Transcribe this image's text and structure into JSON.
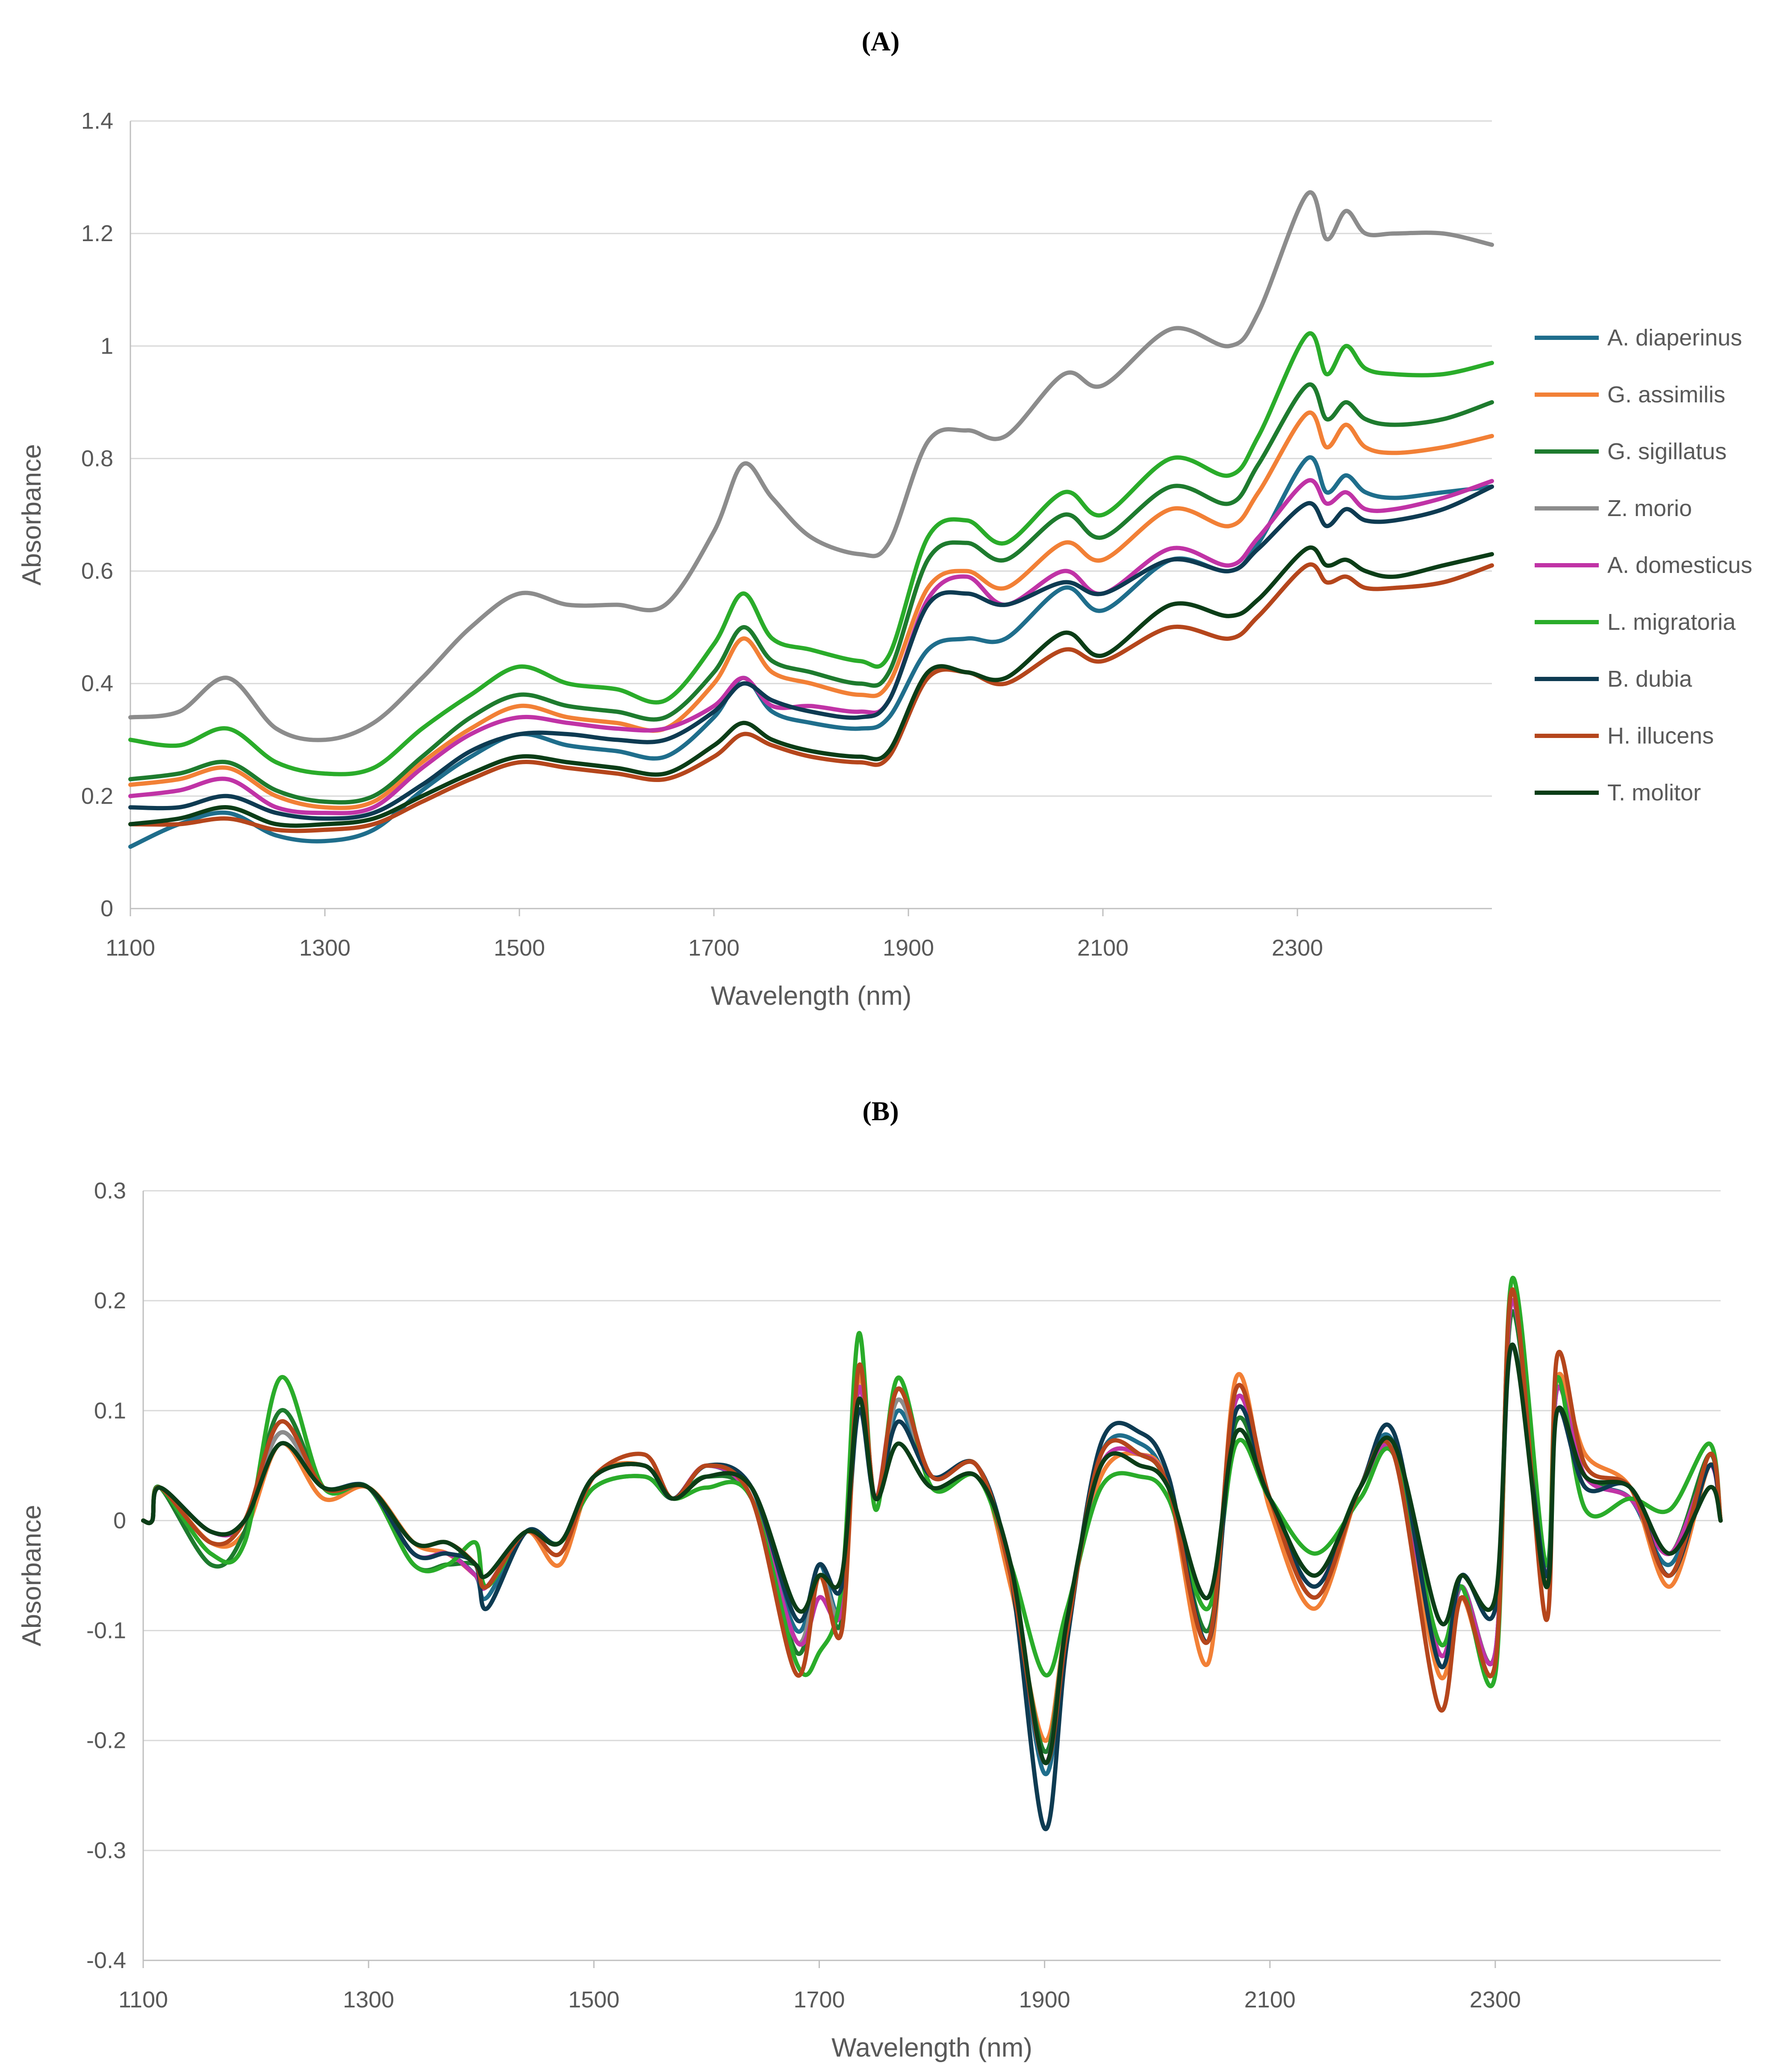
{
  "chart_data": [
    {
      "panel": "A",
      "panel_label": "(A)",
      "type": "line",
      "xlabel": "Wavelength (nm)",
      "ylabel": "Absorbance",
      "xlim": [
        1100,
        2500
      ],
      "ylim": [
        0,
        1.4
      ],
      "xticks": [
        1100,
        1300,
        1500,
        1700,
        1900,
        2100,
        2300
      ],
      "yticks": [
        0,
        0.2,
        0.4,
        0.6,
        0.8,
        1,
        1.2,
        1.4
      ],
      "ytick_labels": [
        "0",
        "0.2",
        "0.4",
        "0.6",
        "0.8",
        "1",
        "1.2",
        "1.4"
      ],
      "grid": "horizontal",
      "legend": "right",
      "x": [
        1100,
        1150,
        1200,
        1250,
        1300,
        1350,
        1400,
        1450,
        1500,
        1550,
        1600,
        1650,
        1700,
        1730,
        1760,
        1800,
        1850,
        1880,
        1920,
        1960,
        2000,
        2060,
        2100,
        2170,
        2230,
        2260,
        2310,
        2330,
        2350,
        2370,
        2400,
        2450,
        2500
      ],
      "series": [
        {
          "name": "A. diaperinus",
          "color": "#1f6e8c",
          "values": [
            0.11,
            0.15,
            0.17,
            0.13,
            0.12,
            0.14,
            0.21,
            0.27,
            0.31,
            0.29,
            0.28,
            0.27,
            0.34,
            0.41,
            0.35,
            0.33,
            0.32,
            0.34,
            0.46,
            0.48,
            0.48,
            0.57,
            0.53,
            0.62,
            0.6,
            0.65,
            0.8,
            0.74,
            0.77,
            0.74,
            0.73,
            0.74,
            0.75
          ]
        },
        {
          "name": "G. assimilis",
          "color": "#f28036",
          "values": [
            0.22,
            0.23,
            0.25,
            0.2,
            0.18,
            0.19,
            0.26,
            0.32,
            0.36,
            0.34,
            0.33,
            0.32,
            0.4,
            0.48,
            0.42,
            0.4,
            0.38,
            0.4,
            0.57,
            0.6,
            0.57,
            0.65,
            0.62,
            0.71,
            0.68,
            0.74,
            0.88,
            0.82,
            0.86,
            0.82,
            0.81,
            0.82,
            0.84
          ]
        },
        {
          "name": "G. sigillatus",
          "color": "#1e7b2e",
          "values": [
            0.23,
            0.24,
            0.26,
            0.21,
            0.19,
            0.2,
            0.27,
            0.34,
            0.38,
            0.36,
            0.35,
            0.34,
            0.42,
            0.5,
            0.44,
            0.42,
            0.4,
            0.42,
            0.62,
            0.65,
            0.62,
            0.7,
            0.66,
            0.75,
            0.72,
            0.79,
            0.93,
            0.87,
            0.9,
            0.87,
            0.86,
            0.87,
            0.9
          ]
        },
        {
          "name": "Z. morio",
          "color": "#8c8c8c",
          "values": [
            0.34,
            0.35,
            0.41,
            0.32,
            0.3,
            0.33,
            0.41,
            0.5,
            0.56,
            0.54,
            0.54,
            0.54,
            0.67,
            0.79,
            0.73,
            0.66,
            0.63,
            0.65,
            0.83,
            0.85,
            0.84,
            0.95,
            0.93,
            1.03,
            1.0,
            1.06,
            1.27,
            1.19,
            1.24,
            1.2,
            1.2,
            1.2,
            1.18
          ]
        },
        {
          "name": "A. domesticus",
          "color": "#c033a6",
          "values": [
            0.2,
            0.21,
            0.23,
            0.18,
            0.17,
            0.18,
            0.25,
            0.31,
            0.34,
            0.33,
            0.32,
            0.32,
            0.36,
            0.41,
            0.36,
            0.36,
            0.35,
            0.37,
            0.55,
            0.59,
            0.54,
            0.6,
            0.56,
            0.64,
            0.61,
            0.66,
            0.76,
            0.72,
            0.74,
            0.71,
            0.71,
            0.73,
            0.76
          ]
        },
        {
          "name": "L. migratoria",
          "color": "#2aac2a",
          "values": [
            0.3,
            0.29,
            0.32,
            0.26,
            0.24,
            0.25,
            0.32,
            0.38,
            0.43,
            0.4,
            0.39,
            0.37,
            0.47,
            0.56,
            0.48,
            0.46,
            0.44,
            0.45,
            0.66,
            0.69,
            0.65,
            0.74,
            0.7,
            0.8,
            0.77,
            0.84,
            1.02,
            0.95,
            1.0,
            0.96,
            0.95,
            0.95,
            0.97
          ]
        },
        {
          "name": "B. dubia",
          "color": "#0e3b52",
          "values": [
            0.18,
            0.18,
            0.2,
            0.17,
            0.16,
            0.17,
            0.22,
            0.28,
            0.31,
            0.31,
            0.3,
            0.3,
            0.35,
            0.4,
            0.37,
            0.35,
            0.34,
            0.37,
            0.54,
            0.56,
            0.54,
            0.58,
            0.56,
            0.62,
            0.6,
            0.64,
            0.72,
            0.68,
            0.71,
            0.69,
            0.69,
            0.71,
            0.75
          ]
        },
        {
          "name": "H. illucens",
          "color": "#b5461c",
          "values": [
            0.15,
            0.15,
            0.16,
            0.14,
            0.14,
            0.15,
            0.19,
            0.23,
            0.26,
            0.25,
            0.24,
            0.23,
            0.27,
            0.31,
            0.29,
            0.27,
            0.26,
            0.27,
            0.41,
            0.42,
            0.4,
            0.46,
            0.44,
            0.5,
            0.48,
            0.52,
            0.61,
            0.58,
            0.59,
            0.57,
            0.57,
            0.58,
            0.61
          ]
        },
        {
          "name": "T. molitor",
          "color": "#0b3d17",
          "values": [
            0.15,
            0.16,
            0.18,
            0.15,
            0.15,
            0.16,
            0.2,
            0.24,
            0.27,
            0.26,
            0.25,
            0.24,
            0.29,
            0.33,
            0.3,
            0.28,
            0.27,
            0.28,
            0.42,
            0.42,
            0.41,
            0.49,
            0.45,
            0.54,
            0.52,
            0.55,
            0.64,
            0.61,
            0.62,
            0.6,
            0.59,
            0.61,
            0.63
          ]
        }
      ]
    },
    {
      "panel": "B",
      "panel_label": "(B)",
      "type": "line",
      "xlabel": "Wavelength (nm)",
      "ylabel": "Absorbance",
      "xlim": [
        1100,
        2500
      ],
      "ylim": [
        -0.4,
        0.3
      ],
      "xticks": [
        1100,
        1300,
        1500,
        1700,
        1900,
        2100,
        2300
      ],
      "yticks": [
        -0.4,
        -0.3,
        -0.2,
        -0.1,
        0,
        0.1,
        0.2,
        0.3
      ],
      "ytick_labels": [
        "-0.4",
        "-0.3",
        "-0.2",
        "-0.1",
        "0",
        "0.1",
        "0.2",
        "0.3"
      ],
      "grid": "horizontal",
      "x": [
        1100,
        1108,
        1115,
        1160,
        1190,
        1222,
        1260,
        1300,
        1340,
        1370,
        1395,
        1405,
        1440,
        1470,
        1500,
        1545,
        1570,
        1600,
        1640,
        1680,
        1700,
        1720,
        1735,
        1750,
        1770,
        1800,
        1840,
        1870,
        1900,
        1920,
        1950,
        1985,
        2010,
        2045,
        2070,
        2100,
        2140,
        2180,
        2210,
        2250,
        2270,
        2300,
        2315,
        2345,
        2355,
        2380,
        2420,
        2455,
        2490,
        2500
      ],
      "series": [
        {
          "name": "A. diaperinus",
          "color": "#1f6e8c",
          "values": [
            0,
            0,
            0.03,
            -0.01,
            0,
            0.08,
            0.03,
            0.03,
            -0.03,
            -0.03,
            -0.05,
            -0.07,
            -0.01,
            -0.02,
            0.04,
            0.05,
            0.02,
            0.05,
            0.02,
            -0.1,
            -0.04,
            -0.08,
            0.12,
            0.02,
            0.1,
            0.04,
            0.05,
            -0.05,
            -0.23,
            -0.1,
            0.06,
            0.07,
            0.03,
            -0.11,
            0.11,
            0.02,
            -0.07,
            0.03,
            0.07,
            -0.13,
            -0.06,
            -0.12,
            0.2,
            -0.05,
            0.12,
            0.04,
            0.02,
            -0.04,
            0.05,
            0
          ]
        },
        {
          "name": "G. assimilis",
          "color": "#f28036",
          "values": [
            0,
            0,
            0.03,
            -0.02,
            -0.01,
            0.07,
            0.02,
            0.03,
            -0.02,
            -0.03,
            -0.05,
            -0.06,
            -0.01,
            -0.04,
            0.04,
            0.05,
            0.02,
            0.05,
            0.02,
            -0.12,
            -0.05,
            -0.1,
            0.13,
            0.02,
            0.12,
            0.04,
            0.05,
            -0.06,
            -0.2,
            -0.09,
            0.04,
            0.06,
            0.03,
            -0.13,
            0.13,
            0.01,
            -0.08,
            0.03,
            0.06,
            -0.14,
            -0.07,
            -0.13,
            0.21,
            -0.06,
            0.13,
            0.06,
            0.03,
            -0.06,
            0.05,
            0
          ]
        },
        {
          "name": "G. sigillatus",
          "color": "#1e7b2e",
          "values": [
            0,
            0,
            0.03,
            -0.04,
            -0.01,
            0.1,
            0.03,
            0.03,
            -0.04,
            -0.04,
            -0.04,
            -0.06,
            -0.01,
            -0.02,
            0.03,
            0.04,
            0.02,
            0.04,
            0.02,
            -0.12,
            -0.05,
            -0.09,
            0.14,
            0.02,
            0.12,
            0.04,
            0.05,
            -0.05,
            -0.21,
            -0.09,
            0.05,
            0.06,
            0.03,
            -0.1,
            0.09,
            0.02,
            -0.05,
            0.03,
            0.06,
            -0.12,
            -0.06,
            -0.12,
            0.19,
            -0.05,
            0.12,
            0.04,
            0.03,
            -0.03,
            0.06,
            0
          ]
        },
        {
          "name": "Z. morio",
          "color": "#8c8c8c",
          "values": [
            0,
            0,
            0.03,
            -0.01,
            0,
            0.08,
            0.03,
            0.03,
            -0.03,
            -0.03,
            -0.05,
            -0.06,
            -0.01,
            -0.02,
            0.04,
            0.05,
            0.02,
            0.05,
            0.02,
            -0.11,
            -0.05,
            -0.08,
            0.12,
            0.02,
            0.11,
            0.04,
            0.05,
            -0.05,
            -0.22,
            -0.09,
            0.05,
            0.06,
            0.03,
            -0.11,
            0.11,
            0.02,
            -0.07,
            0.03,
            0.06,
            -0.12,
            -0.06,
            -0.12,
            0.2,
            -0.05,
            0.12,
            0.04,
            0.02,
            -0.03,
            0.05,
            0
          ]
        },
        {
          "name": "A. domesticus",
          "color": "#c033a6",
          "values": [
            0,
            0,
            0.03,
            -0.01,
            0,
            0.09,
            0.03,
            0.03,
            -0.03,
            -0.03,
            -0.05,
            -0.06,
            -0.01,
            -0.02,
            0.04,
            0.05,
            0.02,
            0.05,
            0.02,
            -0.11,
            -0.07,
            -0.08,
            0.12,
            0.02,
            0.12,
            0.04,
            0.05,
            -0.05,
            -0.22,
            -0.09,
            0.05,
            0.06,
            0.03,
            -0.11,
            0.11,
            0.02,
            -0.06,
            0.03,
            0.06,
            -0.12,
            -0.06,
            -0.12,
            0.2,
            -0.05,
            0.12,
            0.04,
            0.02,
            -0.03,
            0.05,
            0
          ]
        },
        {
          "name": "L. migratoria",
          "color": "#2aac2a",
          "values": [
            0,
            0,
            0.03,
            -0.03,
            -0.02,
            0.13,
            0.03,
            0.03,
            -0.04,
            -0.04,
            -0.02,
            -0.06,
            -0.01,
            -0.02,
            0.03,
            0.04,
            0.02,
            0.03,
            0.02,
            -0.13,
            -0.12,
            -0.06,
            0.17,
            0.01,
            0.13,
            0.03,
            0.04,
            -0.04,
            -0.14,
            -0.08,
            0.03,
            0.04,
            0.02,
            -0.08,
            0.07,
            0.02,
            -0.03,
            0.02,
            0.06,
            -0.11,
            -0.06,
            -0.14,
            0.22,
            -0.04,
            0.13,
            0.01,
            0.02,
            0.01,
            0.07,
            0
          ]
        },
        {
          "name": "B. dubia",
          "color": "#0e3b52",
          "values": [
            0,
            0,
            0.03,
            -0.01,
            0,
            0.07,
            0.03,
            0.03,
            -0.03,
            -0.03,
            -0.04,
            -0.08,
            -0.01,
            -0.02,
            0.04,
            0.05,
            0.02,
            0.05,
            0.03,
            -0.09,
            -0.04,
            -0.06,
            0.1,
            0.02,
            0.09,
            0.04,
            0.05,
            -0.05,
            -0.28,
            -0.11,
            0.07,
            0.08,
            0.04,
            -0.11,
            0.1,
            0.02,
            -0.06,
            0.03,
            0.08,
            -0.13,
            -0.05,
            -0.08,
            0.16,
            -0.05,
            0.1,
            0.03,
            0.03,
            -0.05,
            0.05,
            0
          ]
        },
        {
          "name": "H. illucens",
          "color": "#b5461c",
          "values": [
            0,
            0,
            0.03,
            -0.02,
            0,
            0.09,
            0.03,
            0.03,
            -0.02,
            -0.02,
            -0.04,
            -0.06,
            -0.01,
            -0.03,
            0.04,
            0.06,
            0.02,
            0.05,
            0.02,
            -0.14,
            -0.05,
            -0.1,
            0.14,
            0.02,
            0.12,
            0.04,
            0.05,
            -0.05,
            -0.22,
            -0.1,
            0.06,
            0.06,
            0.03,
            -0.11,
            0.12,
            0.02,
            -0.07,
            0.03,
            0.06,
            -0.17,
            -0.07,
            -0.13,
            0.21,
            -0.09,
            0.15,
            0.05,
            0.03,
            -0.05,
            0.06,
            0
          ]
        },
        {
          "name": "T. molitor",
          "color": "#0b3d17",
          "values": [
            0,
            0,
            0.03,
            -0.01,
            0,
            0.07,
            0.03,
            0.03,
            -0.02,
            -0.02,
            -0.04,
            -0.05,
            -0.01,
            -0.02,
            0.04,
            0.05,
            0.02,
            0.04,
            0.03,
            -0.08,
            -0.05,
            -0.05,
            0.11,
            0.02,
            0.07,
            0.03,
            0.04,
            -0.04,
            -0.22,
            -0.09,
            0.05,
            0.05,
            0.03,
            -0.07,
            0.08,
            0.02,
            -0.05,
            0.03,
            0.07,
            -0.09,
            -0.05,
            -0.07,
            0.16,
            -0.06,
            0.1,
            0.04,
            0.03,
            -0.03,
            0.03,
            0
          ]
        }
      ]
    }
  ]
}
